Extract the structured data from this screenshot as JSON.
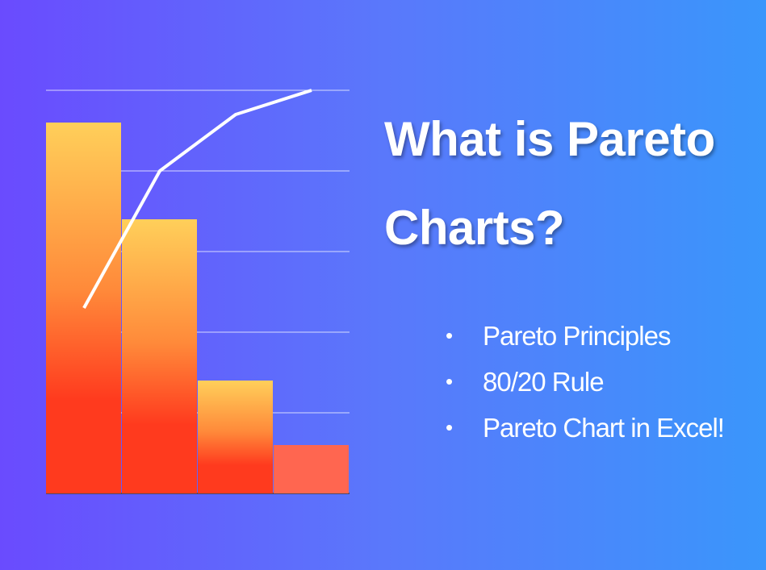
{
  "title": "What is Pareto Charts?",
  "bullets": [
    "Pareto Principles",
    "80/20 Rule",
    "Pareto Chart in Excel!"
  ],
  "chart_data": {
    "type": "bar",
    "series": [
      {
        "type": "bar",
        "values": [
          92,
          68,
          28,
          12
        ]
      },
      {
        "type": "line",
        "color": "#ffffff",
        "values": [
          46,
          80,
          94,
          100
        ]
      }
    ],
    "ylim": [
      0,
      100
    ],
    "yticks": [
      0,
      20,
      40,
      60,
      80,
      100
    ],
    "grid": true
  }
}
